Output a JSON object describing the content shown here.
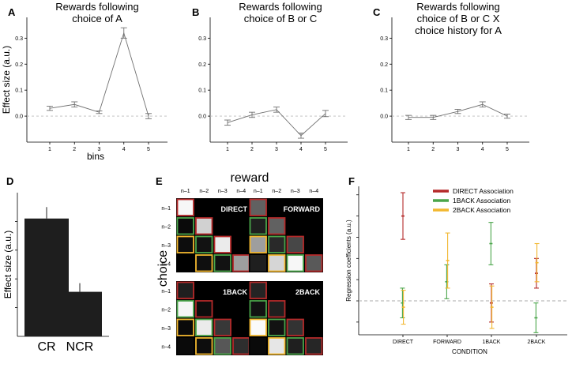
{
  "chart_data": [
    {
      "panel": "A",
      "type": "line",
      "title_lines": [
        "Rewards following",
        "choice of A"
      ],
      "ylabel": "Effect size (a.u.)",
      "xlabel": "bins",
      "x": [
        1,
        2,
        3,
        4,
        5
      ],
      "values": [
        0.03,
        0.045,
        0.015,
        0.32,
        0.0
      ],
      "errors": [
        0.008,
        0.01,
        0.005,
        0.02,
        0.01
      ],
      "ylim": [
        -0.1,
        0.38
      ],
      "yticks": [
        0.0,
        0.1,
        0.2,
        0.3
      ],
      "ytick_labels": [
        "0.0",
        "0.1",
        "0.2",
        "0.3"
      ],
      "reference_line": 0.0
    },
    {
      "panel": "B",
      "type": "line",
      "title_lines": [
        "Rewards following",
        "choice of B or C"
      ],
      "ylabel": "",
      "xlabel": "",
      "x": [
        1,
        2,
        3,
        4,
        5
      ],
      "values": [
        -0.025,
        0.005,
        0.025,
        -0.075,
        0.01
      ],
      "errors": [
        0.01,
        0.01,
        0.01,
        0.01,
        0.012
      ],
      "ylim": [
        -0.1,
        0.38
      ],
      "yticks": [
        0.0,
        0.1,
        0.2,
        0.3
      ],
      "ytick_labels": [
        "0.0",
        "0.1",
        "0.2",
        "0.3"
      ],
      "reference_line": 0.0
    },
    {
      "panel": "C",
      "type": "line",
      "title_lines": [
        "Rewards following",
        "choice of B or C X",
        "choice history for A"
      ],
      "ylabel": "",
      "xlabel": "",
      "x": [
        1,
        2,
        3,
        4,
        5
      ],
      "values": [
        -0.005,
        -0.005,
        0.018,
        0.045,
        0.0
      ],
      "errors": [
        0.008,
        0.008,
        0.008,
        0.01,
        0.008
      ],
      "ylim": [
        -0.1,
        0.38
      ],
      "yticks": [
        0.0,
        0.1,
        0.2,
        0.3
      ],
      "ytick_labels": [
        "0.0",
        "0.1",
        "0.2",
        "0.3"
      ],
      "reference_line": 0.0
    },
    {
      "panel": "D",
      "type": "bar",
      "categories": [
        "CR",
        "NCR"
      ],
      "values": [
        0.82,
        0.31
      ],
      "errors": [
        0.08,
        0.06
      ],
      "ylabel": "Effect size (a.u.)",
      "ylim": [
        0,
        1.0
      ]
    },
    {
      "panel": "E",
      "type": "heatmap",
      "top_label": "reward",
      "side_label": "choice",
      "column_labels": [
        "n–1",
        "n–2",
        "n–3",
        "n–4"
      ],
      "row_labels": [
        "n–1",
        "n–2",
        "n–3",
        "n–4"
      ],
      "matrices": [
        {
          "name": "DIRECT",
          "rows": [
            [
              0.97,
              0.0,
              0.0,
              0.0
            ],
            [
              0.04,
              0.82,
              0.0,
              0.0
            ],
            [
              0.05,
              0.07,
              0.92,
              0.0
            ],
            [
              0.0,
              0.06,
              0.07,
              0.62
            ]
          ],
          "borders": [
            [
              "red",
              "",
              "",
              ""
            ],
            [
              "green",
              "red",
              "",
              ""
            ],
            [
              "orange",
              "green",
              "red",
              ""
            ],
            [
              "",
              "orange",
              "green",
              "red"
            ]
          ]
        },
        {
          "name": "FORWARD",
          "rows": [
            [
              0.38,
              0.0,
              0.0,
              0.0
            ],
            [
              0.12,
              0.38,
              0.0,
              0.0
            ],
            [
              0.62,
              0.16,
              0.28,
              0.0
            ],
            [
              0.12,
              0.84,
              0.97,
              0.35
            ]
          ],
          "borders": [
            [
              "red",
              "",
              "",
              ""
            ],
            [
              "green",
              "red",
              "",
              ""
            ],
            [
              "orange",
              "green",
              "red",
              ""
            ],
            [
              "",
              "orange",
              "green",
              "red"
            ]
          ]
        },
        {
          "name": "1BACK",
          "rows": [
            [
              0.12,
              0.0,
              0.0,
              0.0
            ],
            [
              0.96,
              0.05,
              0.0,
              0.0
            ],
            [
              0.04,
              0.92,
              0.22,
              0.0
            ],
            [
              0.04,
              0.05,
              0.34,
              0.18
            ]
          ],
          "borders": [
            [
              "red",
              "",
              "",
              ""
            ],
            [
              "green",
              "red",
              "",
              ""
            ],
            [
              "orange",
              "green",
              "red",
              ""
            ],
            [
              "",
              "orange",
              "green",
              "red"
            ]
          ]
        },
        {
          "name": "2BACK",
          "rows": [
            [
              0.14,
              0.0,
              0.0,
              0.0
            ],
            [
              0.07,
              0.12,
              0.0,
              0.0
            ],
            [
              0.98,
              0.07,
              0.2,
              0.0
            ],
            [
              0.04,
              0.9,
              0.12,
              0.15
            ]
          ],
          "borders": [
            [
              "red",
              "",
              "",
              ""
            ],
            [
              "green",
              "red",
              "",
              ""
            ],
            [
              "orange",
              "green",
              "red",
              ""
            ],
            [
              "",
              "orange",
              "green",
              "red"
            ]
          ]
        }
      ]
    },
    {
      "panel": "F",
      "type": "scatter",
      "ylabel": "Regression coefficients (a.u.)",
      "xlabel": "CONDITION",
      "categories": [
        "DIRECT",
        "FORWARD",
        "1BACK",
        "2BACK"
      ],
      "ylim": [
        -0.8,
        2.7
      ],
      "reference_line": 0.0,
      "series": [
        {
          "name": "DIRECT  Association",
          "color": "#b52a2a",
          "values": [
            2.0,
            null,
            -0.05,
            0.65
          ],
          "errors": [
            0.55,
            null,
            0.45,
            0.35
          ]
        },
        {
          "name": "1BACK  Association",
          "color": "#4aa54a",
          "values": [
            -0.05,
            0.45,
            1.35,
            -0.4
          ],
          "errors": [
            0.35,
            0.4,
            0.5,
            0.35
          ]
        },
        {
          "name": "2BACK  Association",
          "color": "#f2b72f",
          "values": [
            -0.15,
            0.95,
            -0.15,
            0.9
          ],
          "errors": [
            0.4,
            0.65,
            0.5,
            0.45
          ]
        }
      ]
    }
  ],
  "panel_letters": [
    "A",
    "B",
    "C",
    "D",
    "E",
    "F"
  ],
  "colors": {
    "line": "#707070",
    "bar": "#1e1e1e",
    "reference_line": "#bbbbbb",
    "border_red": "#b52a2a",
    "border_green": "#4aa54a",
    "border_orange": "#f2b72f"
  }
}
